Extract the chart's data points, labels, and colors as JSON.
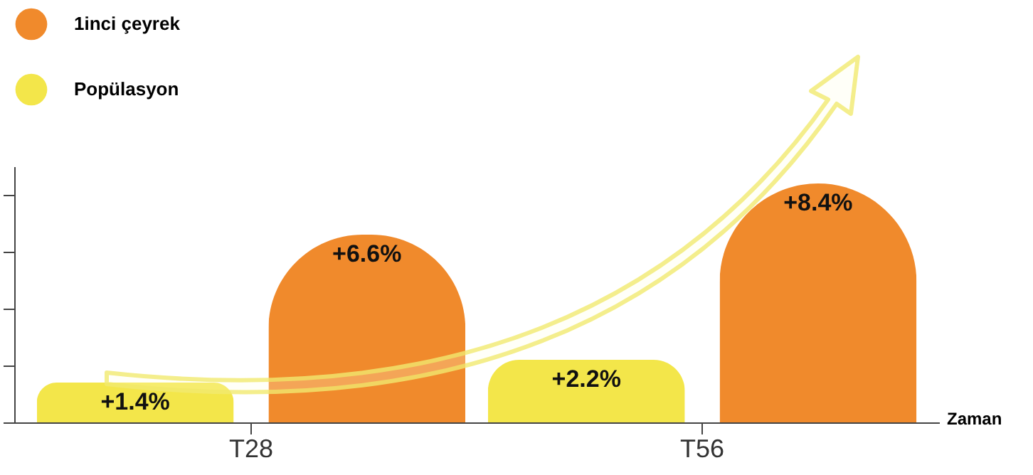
{
  "chart_data": {
    "type": "bar",
    "xlabel": "Zaman",
    "categories": [
      "T28",
      "T56"
    ],
    "series": [
      {
        "name": "1inci çeyrek",
        "color": "#f08a2c",
        "values": [
          6.6,
          8.4
        ],
        "value_labels": [
          "+6.6%",
          "+8.4%"
        ]
      },
      {
        "name": "Popülasyon",
        "color": "#f3e64a",
        "values": [
          1.4,
          2.2
        ],
        "value_labels": [
          "+1.4%",
          "+2.2%"
        ]
      }
    ],
    "legend": "top left",
    "tick_labels": "x",
    "grid": false
  }
}
